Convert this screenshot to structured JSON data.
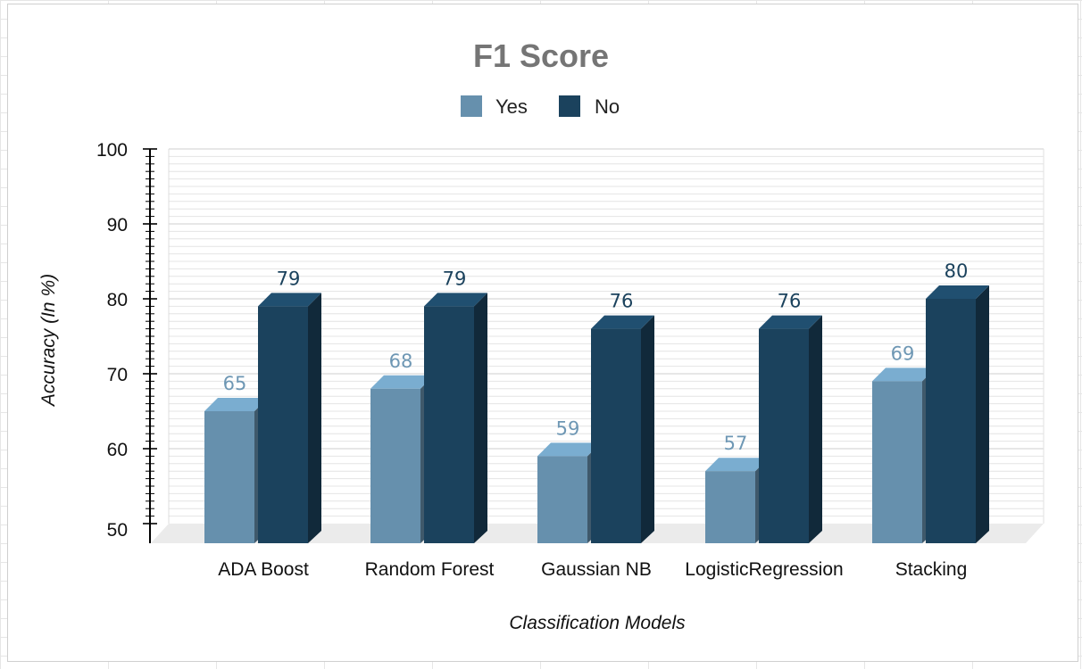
{
  "chart_data": {
    "type": "bar",
    "title": "F1 Score",
    "xlabel": "Classification Models",
    "ylabel": "Accuracy (In %)",
    "categories": [
      "ADA Boost",
      "Random Forest",
      "Gaussian NB",
      "LogisticRegression",
      "Stacking"
    ],
    "series": [
      {
        "name": "Yes",
        "values": [
          65,
          68,
          59,
          57,
          69
        ],
        "color": "#6690ad"
      },
      {
        "name": "No",
        "values": [
          79,
          79,
          76,
          76,
          80
        ],
        "color": "#1b425d"
      }
    ],
    "ylim": [
      50,
      100
    ],
    "yticks": [
      "50",
      "60",
      "70",
      "80",
      "90",
      "100"
    ],
    "grid": true,
    "legend_position": "top-center",
    "style": "3d-bar"
  }
}
